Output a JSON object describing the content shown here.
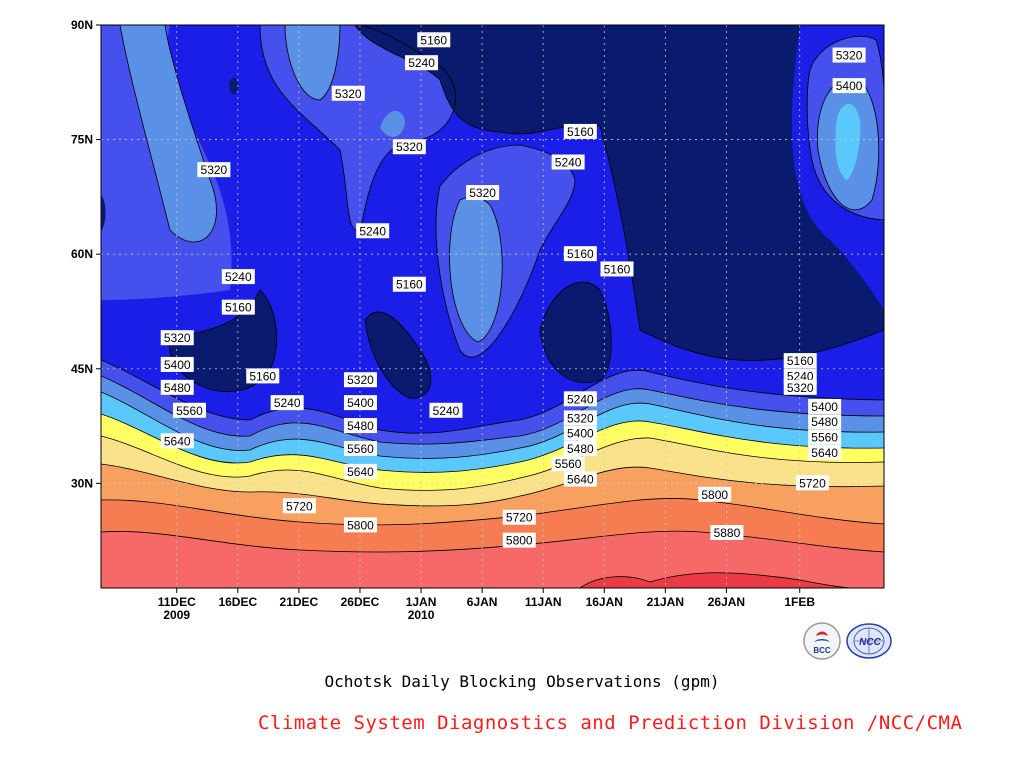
{
  "chart_data": {
    "type": "heatmap",
    "title": "Ochotsk Daily Blocking Observations (gpm)",
    "y_ticks": [
      "90N",
      "75N",
      "60N",
      "45N",
      "30N"
    ],
    "x_ticks": [
      {
        "label": "11DEC",
        "year": "2009"
      },
      {
        "label": "16DEC",
        "year": ""
      },
      {
        "label": "21DEC",
        "year": ""
      },
      {
        "label": "26DEC",
        "year": ""
      },
      {
        "label": "1JAN",
        "year": "2010"
      },
      {
        "label": "6JAN",
        "year": ""
      },
      {
        "label": "11JAN",
        "year": ""
      },
      {
        "label": "16JAN",
        "year": ""
      },
      {
        "label": "21JAN",
        "year": ""
      },
      {
        "label": "26JAN",
        "year": ""
      },
      {
        "label": "1FEB",
        "year": ""
      }
    ],
    "contour_levels": [
      5160,
      5240,
      5320,
      5400,
      5480,
      5560,
      5640,
      5720,
      5800,
      5880
    ],
    "level_colors": [
      "#0a1a6e",
      "#1a1ee6",
      "#4650ec",
      "#5a90e6",
      "#5ac8fa",
      "#8ef0f4",
      "#ffff64",
      "#fae28a",
      "#f7a060",
      "#f67c52",
      "#f76868",
      "#ec3a46"
    ],
    "contour_labels": [
      {
        "text": "5160",
        "lat": 88,
        "day": 21
      },
      {
        "text": "5240",
        "lat": 85,
        "day": 20
      },
      {
        "text": "5320",
        "lat": 81,
        "day": 14
      },
      {
        "text": "5320",
        "lat": 74,
        "day": 19
      },
      {
        "text": "5320",
        "lat": 71,
        "day": 3
      },
      {
        "text": "5160",
        "lat": 76,
        "day": 33
      },
      {
        "text": "5240",
        "lat": 72,
        "day": 32
      },
      {
        "text": "5320",
        "lat": 68,
        "day": 25
      },
      {
        "text": "5240",
        "lat": 63,
        "day": 16
      },
      {
        "text": "5160",
        "lat": 60,
        "day": 33
      },
      {
        "text": "5160",
        "lat": 58,
        "day": 36
      },
      {
        "text": "5240",
        "lat": 57,
        "day": 5
      },
      {
        "text": "5160",
        "lat": 56,
        "day": 19
      },
      {
        "text": "5160",
        "lat": 53,
        "day": 5
      },
      {
        "text": "5320",
        "lat": 86,
        "day": 55
      },
      {
        "text": "5400",
        "lat": 82,
        "day": 55
      },
      {
        "text": "5320",
        "lat": 49,
        "day": 0
      },
      {
        "text": "5400",
        "lat": 45.5,
        "day": 0
      },
      {
        "text": "5480",
        "lat": 42.5,
        "day": 0
      },
      {
        "text": "5560",
        "lat": 39.5,
        "day": 1
      },
      {
        "text": "5640",
        "lat": 35.5,
        "day": 0
      },
      {
        "text": "5160",
        "lat": 44,
        "day": 7
      },
      {
        "text": "5240",
        "lat": 40.5,
        "day": 9
      },
      {
        "text": "5320",
        "lat": 43.5,
        "day": 15
      },
      {
        "text": "5400",
        "lat": 40.5,
        "day": 15
      },
      {
        "text": "5480",
        "lat": 37.5,
        "day": 15
      },
      {
        "text": "5560",
        "lat": 34.5,
        "day": 15
      },
      {
        "text": "5640",
        "lat": 31.5,
        "day": 15
      },
      {
        "text": "5240",
        "lat": 39.5,
        "day": 22
      },
      {
        "text": "5240",
        "lat": 41,
        "day": 33
      },
      {
        "text": "5320",
        "lat": 38.5,
        "day": 33
      },
      {
        "text": "5400",
        "lat": 36.5,
        "day": 33
      },
      {
        "text": "5480",
        "lat": 34.5,
        "day": 33
      },
      {
        "text": "5560",
        "lat": 32.5,
        "day": 32
      },
      {
        "text": "5640",
        "lat": 30.5,
        "day": 33
      },
      {
        "text": "5720",
        "lat": 27,
        "day": 10
      },
      {
        "text": "5800",
        "lat": 24.5,
        "day": 15
      },
      {
        "text": "5720",
        "lat": 25.5,
        "day": 28
      },
      {
        "text": "5800",
        "lat": 22.5,
        "day": 28
      },
      {
        "text": "5800",
        "lat": 28.5,
        "day": 44
      },
      {
        "text": "5880",
        "lat": 23.5,
        "day": 45
      },
      {
        "text": "5160",
        "lat": 46,
        "day": 51
      },
      {
        "text": "5240",
        "lat": 44,
        "day": 51
      },
      {
        "text": "5320",
        "lat": 42.5,
        "day": 51
      },
      {
        "text": "5400",
        "lat": 40,
        "day": 53
      },
      {
        "text": "5480",
        "lat": 38,
        "day": 53
      },
      {
        "text": "5560",
        "lat": 36,
        "day": 53
      },
      {
        "text": "5640",
        "lat": 34,
        "day": 53
      },
      {
        "text": "5720",
        "lat": 30,
        "day": 52
      }
    ]
  },
  "subtitle": "Ochotsk Daily Blocking Observations (gpm)",
  "credit": "Climate System Diagnostics and Prediction Division /NCC/CMA",
  "logos": [
    {
      "name": "BCC",
      "text": "BCC"
    },
    {
      "name": "NCC",
      "text": "NCC"
    }
  ]
}
